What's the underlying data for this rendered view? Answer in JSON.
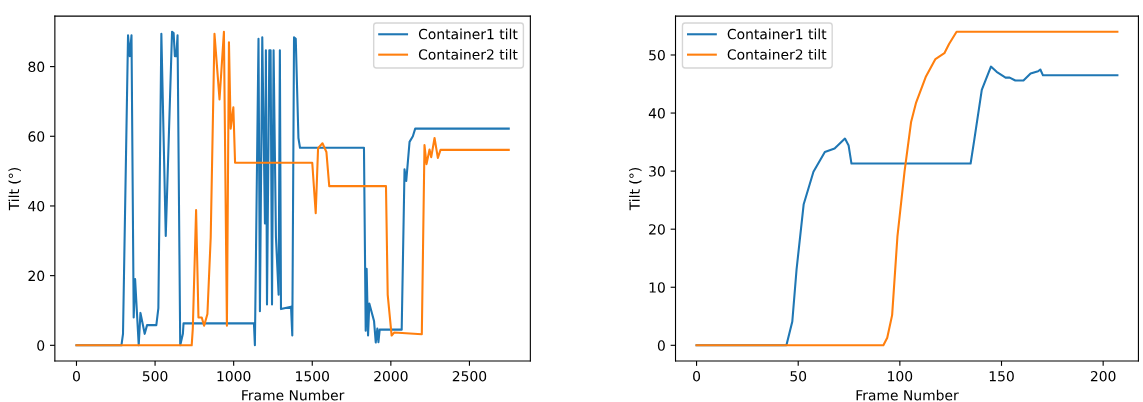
{
  "chart_data": [
    {
      "type": "line",
      "xlabel": "Frame Number",
      "ylabel": "Tilt (°)",
      "legend": "top right",
      "grid": false,
      "xlim": [
        -137.5,
        2887.5
      ],
      "ylim": [
        -4.5,
        94.5
      ],
      "xticks": [
        0,
        500,
        1000,
        1500,
        2000,
        2500
      ],
      "yticks": [
        0,
        20,
        40,
        60,
        80
      ],
      "series": [
        {
          "name": "Container1 tilt",
          "color": "#1f77b4",
          "x": [
            0,
            286,
            296,
            328,
            339,
            350,
            364,
            373,
            396,
            407,
            434,
            449,
            508,
            521,
            540,
            568,
            608,
            618,
            626,
            635,
            643,
            660,
            677,
            681,
            1129,
            1135,
            1158,
            1167,
            1182,
            1199,
            1205,
            1212,
            1227,
            1235,
            1244,
            1254,
            1269,
            1286,
            1294,
            1301,
            1365,
            1373,
            1384,
            1395,
            1412,
            1422,
            1426,
            1829,
            1840,
            1846,
            1855,
            1863,
            1893,
            1904,
            1914,
            1921,
            1929,
            2069,
            2087,
            2098,
            2119,
            2140,
            2155,
            2750
          ],
          "values": [
            0,
            0,
            3.3,
            89,
            83,
            89,
            8,
            19,
            0,
            9.3,
            3.3,
            5.8,
            5.8,
            10.7,
            89.4,
            31.4,
            90,
            89.6,
            83,
            83,
            89,
            0,
            3.3,
            6.3,
            6.3,
            0,
            88,
            9.8,
            88.4,
            35,
            84.7,
            11.7,
            84.7,
            84.7,
            11.7,
            84.7,
            31,
            14.5,
            84.7,
            10.4,
            11.1,
            2.8,
            88.4,
            88,
            59.5,
            56.7,
            56.7,
            56.7,
            4.2,
            22,
            2.8,
            12,
            7,
            0.8,
            4.8,
            0.9,
            4.5,
            4.5,
            50.5,
            47.2,
            58.4,
            60,
            62.2,
            62.2
          ]
        },
        {
          "name": "Container2 tilt",
          "color": "#ff7f0e",
          "x": [
            0,
            733,
            740,
            761,
            776,
            797,
            812,
            833,
            854,
            878,
            910,
            938,
            957,
            970,
            981,
            998,
            1009,
            1500,
            1522,
            1537,
            1565,
            1590,
            1608,
            1969,
            1980,
            2005,
            2022,
            2197,
            2214,
            2227,
            2246,
            2257,
            2278,
            2299,
            2316,
            2750
          ],
          "values": [
            0,
            0,
            4.8,
            38.8,
            8,
            8,
            5.6,
            9,
            31,
            89.4,
            70.6,
            90,
            5.6,
            87,
            62.2,
            68.3,
            52.4,
            52.4,
            37.9,
            56.6,
            58,
            55.5,
            45.7,
            45.7,
            14.5,
            2.8,
            3.7,
            3.2,
            57.5,
            52,
            56.2,
            54,
            59.5,
            53.8,
            56.1,
            56.1
          ]
        }
      ]
    },
    {
      "type": "line",
      "xlabel": "Frame Number",
      "ylabel": "Tilt (°)",
      "legend": "top left",
      "grid": false,
      "xlim": [
        -10.35,
        217.35
      ],
      "ylim": [
        -2.7,
        56.7
      ],
      "xticks": [
        0,
        50,
        100,
        150,
        200
      ],
      "yticks": [
        0,
        10,
        20,
        30,
        40,
        50
      ],
      "series": [
        {
          "name": "Container1 tilt",
          "color": "#1f77b4",
          "x": [
            0,
            44.2,
            47.1,
            49.2,
            52.7,
            57.5,
            63.1,
            67.9,
            73,
            74.8,
            76.2,
            134.8,
            136.7,
            140.3,
            144.8,
            147.6,
            152,
            154,
            156.8,
            160.8,
            164.3,
            168,
            169.1,
            170.4,
            207
          ],
          "values": [
            0,
            0,
            4.1,
            13.1,
            24.3,
            29.9,
            33.3,
            33.9,
            35.6,
            34.4,
            31.3,
            31.3,
            35.6,
            44,
            48,
            47.1,
            46.1,
            46.1,
            45.6,
            45.6,
            46.8,
            47.2,
            47.5,
            46.5,
            46.5
          ]
        },
        {
          "name": "Container2 tilt",
          "color": "#ff7f0e",
          "x": [
            0,
            91.9,
            93.8,
            96.2,
            98.8,
            102.3,
            105.5,
            107.9,
            112.7,
            117.5,
            121.9,
            124.2,
            127.9,
            207
          ],
          "values": [
            0,
            0,
            1.3,
            5.2,
            18.7,
            29.9,
            38.4,
            41.7,
            46.2,
            49.3,
            50.3,
            51.9,
            54,
            54
          ]
        }
      ]
    }
  ]
}
